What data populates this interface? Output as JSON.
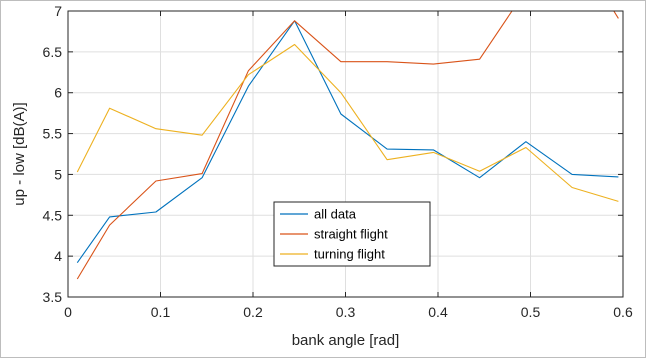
{
  "chart_data": {
    "type": "line",
    "title": "",
    "xlabel": "bank angle [rad]",
    "ylabel": "up - low [dB(A)]",
    "xlim": [
      0,
      0.6
    ],
    "ylim": [
      3.5,
      7
    ],
    "xticks": [
      0,
      0.1,
      0.2,
      0.3,
      0.4,
      0.5,
      0.6
    ],
    "xtick_labels": [
      "0",
      "0.1",
      "0.2",
      "0.3",
      "0.4",
      "0.5",
      "0.6"
    ],
    "yticks": [
      3.5,
      4,
      4.5,
      5,
      5.5,
      6,
      6.5,
      7
    ],
    "ytick_labels": [
      "3.5",
      "4",
      "4.5",
      "5",
      "5.5",
      "6",
      "6.5",
      "7"
    ],
    "grid": true,
    "legend_position": "bottom-center",
    "series": [
      {
        "name": "all data",
        "color": "#0072BD",
        "points": [
          [
            0.01,
            3.92
          ],
          [
            0.045,
            4.48
          ],
          [
            0.095,
            4.54
          ],
          [
            0.145,
            4.96
          ],
          [
            0.195,
            6.08
          ],
          [
            0.245,
            6.88
          ],
          [
            0.295,
            5.74
          ],
          [
            0.345,
            5.31
          ],
          [
            0.395,
            5.3
          ],
          [
            0.445,
            4.96
          ],
          [
            0.495,
            5.4
          ],
          [
            0.545,
            5.0
          ],
          [
            0.595,
            4.97
          ]
        ]
      },
      {
        "name": "straight flight",
        "color": "#D95319",
        "points": [
          [
            0.01,
            3.72
          ],
          [
            0.045,
            4.38
          ],
          [
            0.095,
            4.92
          ],
          [
            0.145,
            5.01
          ],
          [
            0.195,
            6.27
          ],
          [
            0.245,
            6.88
          ],
          [
            0.295,
            6.38
          ],
          [
            0.345,
            6.38
          ],
          [
            0.395,
            6.35
          ],
          [
            0.445,
            6.41
          ],
          [
            0.48,
            7.0
          ],
          [
            0.59,
            7.0
          ],
          [
            0.595,
            6.91
          ]
        ]
      },
      {
        "name": "turning flight",
        "color": "#EDB120",
        "points": [
          [
            0.01,
            5.03
          ],
          [
            0.045,
            5.81
          ],
          [
            0.095,
            5.56
          ],
          [
            0.145,
            5.48
          ],
          [
            0.195,
            6.22
          ],
          [
            0.245,
            6.59
          ],
          [
            0.295,
            6.0
          ],
          [
            0.345,
            5.18
          ],
          [
            0.395,
            5.27
          ],
          [
            0.445,
            5.04
          ],
          [
            0.495,
            5.33
          ],
          [
            0.545,
            4.84
          ],
          [
            0.595,
            4.67
          ]
        ]
      }
    ]
  }
}
